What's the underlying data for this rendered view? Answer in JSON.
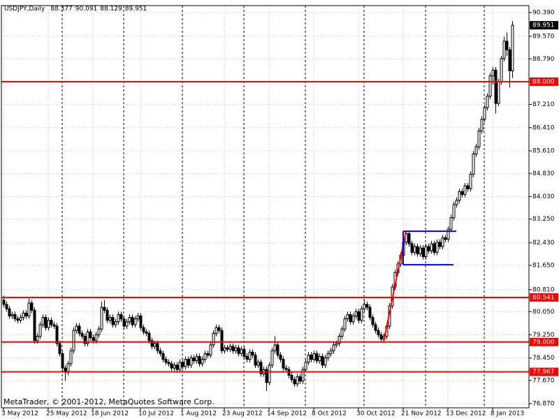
{
  "chart_data": {
    "type": "candlestick",
    "title": "USDJPY,Daily",
    "categories": [
      "3 May 2012",
      null,
      null,
      null,
      null,
      null,
      null,
      null,
      null,
      null,
      null,
      null,
      null,
      null,
      null,
      null,
      "25 May 2012",
      null,
      null,
      null,
      null,
      null,
      null,
      null,
      null,
      null,
      null,
      null,
      null,
      null,
      null,
      null,
      "18 Jun 2012",
      null,
      null,
      null,
      null,
      null,
      null,
      null,
      null,
      null,
      null,
      null,
      null,
      null,
      null,
      null,
      null,
      "10 Jul 2012",
      null,
      null,
      null,
      null,
      null,
      null,
      null,
      null,
      null,
      null,
      null,
      null,
      null,
      null,
      "1 Aug 2012",
      null,
      null,
      null,
      null,
      null,
      null,
      null,
      null,
      null,
      null,
      null,
      null,
      null,
      null,
      "23 Aug 2012",
      null,
      null,
      null,
      null,
      null,
      null,
      null,
      null,
      null,
      null,
      null,
      null,
      null,
      null,
      null,
      "14 Sep 2012",
      null,
      null,
      null,
      null,
      null,
      null,
      null,
      null,
      null,
      null,
      null,
      null,
      null,
      null,
      null,
      "8 Oct 2012",
      null,
      null,
      null,
      null,
      null,
      null,
      null,
      null,
      null,
      null,
      null,
      null,
      null,
      null,
      null,
      "30 Oct 2012",
      null,
      null,
      null,
      null,
      null,
      null,
      null,
      null,
      null,
      null,
      null,
      null,
      null,
      null,
      null,
      "21 Nov 2012",
      null,
      null,
      null,
      null,
      null,
      null,
      null,
      null,
      null,
      null,
      null,
      null,
      null,
      null,
      null,
      "13 Dec 2012",
      null,
      null,
      null,
      null,
      null,
      null,
      null,
      null,
      null,
      null,
      null,
      null,
      null,
      null,
      null,
      "8 Jan 2013",
      null,
      null,
      null,
      null,
      null,
      null,
      null
    ],
    "open": [
      80.45,
      80.3,
      80.15,
      79.9,
      79.95,
      79.8,
      79.75,
      79.85,
      80.0,
      79.9,
      80.35,
      80.1,
      79.05,
      79.2,
      79.6,
      79.85,
      79.5,
      79.75,
      79.6,
      79.55,
      78.95,
      78.6,
      78.1,
      77.95,
      78.25,
      78.7,
      79.4,
      79.55,
      79.3,
      79.2,
      78.95,
      79.35,
      79.15,
      79.05,
      79.25,
      79.45,
      80.2,
      80.1,
      79.75,
      79.85,
      79.6,
      79.7,
      79.95,
      79.8,
      79.55,
      79.7,
      79.85,
      79.6,
      79.8,
      79.9,
      79.5,
      79.35,
      79.3,
      79.05,
      78.85,
      78.95,
      78.7,
      78.6,
      78.4,
      78.3,
      78.25,
      78.1,
      78.2,
      78.05,
      78.3,
      78.15,
      78.4,
      78.2,
      78.45,
      78.35,
      78.5,
      78.25,
      78.4,
      78.6,
      78.55,
      78.9,
      79.3,
      79.5,
      79.4,
      78.7,
      78.8,
      78.75,
      78.85,
      78.7,
      78.8,
      78.6,
      78.75,
      78.5,
      78.4,
      78.65,
      78.55,
      78.2,
      78.3,
      77.9,
      78.05,
      77.6,
      78.2,
      78.7,
      78.9,
      78.55,
      78.4,
      78.1,
      78.05,
      77.85,
      77.7,
      77.55,
      77.8,
      77.65,
      78.05,
      78.3,
      78.55,
      78.4,
      78.6,
      78.35,
      78.5,
      78.2,
      78.45,
      78.6,
      78.7,
      78.9,
      78.95,
      79.2,
      79.45,
      79.8,
      79.95,
      79.7,
      79.9,
      80.05,
      79.75,
      80.15,
      80.3,
      80.2,
      79.85,
      79.6,
      79.4,
      79.25,
      79.1,
      79.2,
      79.55,
      80.25,
      80.9,
      81.4,
      81.7,
      82.0,
      82.45,
      82.75,
      82.4,
      82.1,
      82.3,
      82.05,
      82.25,
      81.95,
      82.3,
      82.15,
      82.4,
      82.1,
      82.45,
      82.3,
      82.6,
      82.55,
      82.9,
      83.3,
      83.75,
      83.9,
      84.2,
      84.1,
      84.4,
      84.3,
      84.8,
      85.5,
      85.75,
      86.3,
      86.7,
      87.1,
      87.5,
      88.2,
      88.4,
      87.25,
      88.0,
      88.8,
      89.4,
      89.1,
      88.377
    ],
    "high": [
      80.6,
      80.4,
      80.25,
      80.05,
      80.05,
      79.9,
      79.95,
      80.1,
      80.1,
      80.5,
      80.45,
      80.2,
      79.3,
      79.7,
      79.95,
      79.95,
      79.85,
      79.85,
      79.7,
      79.65,
      79.05,
      78.7,
      78.2,
      78.35,
      78.8,
      79.5,
      79.65,
      79.65,
      79.4,
      79.3,
      79.45,
      79.45,
      79.25,
      79.35,
      79.55,
      80.4,
      80.45,
      80.2,
      79.95,
      79.95,
      79.8,
      80.05,
      80.05,
      79.9,
      79.8,
      79.95,
      79.95,
      79.9,
      80.0,
      80.0,
      79.6,
      79.45,
      79.4,
      79.15,
      79.05,
      79.05,
      78.8,
      78.7,
      78.5,
      78.4,
      78.35,
      78.3,
      78.3,
      78.4,
      78.4,
      78.5,
      78.5,
      78.55,
      78.55,
      78.6,
      78.6,
      78.5,
      78.7,
      78.7,
      79.0,
      79.4,
      79.6,
      79.6,
      79.5,
      78.9,
      78.9,
      78.95,
      78.95,
      78.9,
      78.9,
      78.85,
      78.85,
      78.6,
      78.75,
      78.75,
      78.65,
      78.4,
      78.4,
      78.15,
      78.15,
      78.3,
      78.8,
      79.2,
      79.0,
      78.65,
      78.5,
      78.2,
      78.15,
      77.95,
      77.8,
      77.9,
      77.9,
      78.15,
      78.4,
      78.65,
      78.65,
      78.7,
      78.7,
      78.6,
      78.6,
      78.55,
      78.7,
      78.8,
      79.0,
      79.05,
      79.3,
      79.55,
      79.9,
      80.05,
      80.05,
      80.0,
      80.15,
      80.15,
      80.25,
      80.45,
      80.4,
      80.3,
      79.95,
      79.7,
      79.5,
      79.35,
      79.3,
      79.65,
      80.35,
      81.0,
      81.5,
      81.8,
      82.1,
      82.55,
      82.85,
      82.85,
      82.5,
      82.4,
      82.4,
      82.35,
      82.35,
      82.4,
      82.4,
      82.5,
      82.5,
      82.55,
      82.55,
      82.7,
      82.7,
      83.0,
      83.4,
      83.85,
      84.0,
      84.3,
      84.3,
      84.5,
      84.5,
      84.9,
      85.6,
      85.85,
      86.4,
      86.8,
      87.2,
      87.6,
      88.3,
      88.5,
      88.5,
      88.1,
      88.9,
      89.55,
      89.7,
      89.2,
      90.091
    ],
    "low": [
      80.2,
      80.05,
      79.8,
      79.8,
      79.7,
      79.65,
      79.65,
      79.75,
      79.8,
      79.8,
      80.0,
      78.95,
      78.95,
      79.1,
      79.5,
      79.4,
      79.4,
      79.5,
      79.45,
      78.85,
      78.5,
      77.95,
      77.65,
      77.85,
      78.15,
      78.6,
      79.3,
      79.2,
      79.1,
      78.85,
      78.85,
      79.05,
      78.95,
      78.95,
      79.15,
      79.35,
      80.0,
      79.65,
      79.65,
      79.5,
      79.5,
      79.6,
      79.7,
      79.45,
      79.45,
      79.6,
      79.5,
      79.5,
      79.7,
      79.4,
      79.25,
      79.2,
      78.95,
      78.75,
      78.75,
      78.6,
      78.5,
      78.3,
      78.2,
      78.15,
      78.0,
      78.0,
      77.95,
      77.95,
      78.05,
      78.05,
      78.1,
      78.1,
      78.25,
      78.25,
      78.15,
      78.15,
      78.3,
      78.45,
      78.45,
      78.8,
      79.2,
      79.3,
      78.6,
      78.6,
      78.65,
      78.65,
      78.6,
      78.6,
      78.5,
      78.5,
      78.4,
      78.3,
      78.3,
      78.45,
      78.1,
      78.1,
      77.8,
      77.8,
      77.3,
      77.5,
      78.1,
      78.6,
      78.45,
      78.3,
      78.0,
      77.95,
      77.75,
      77.6,
      77.45,
      77.45,
      77.55,
      77.55,
      77.95,
      78.2,
      78.3,
      78.3,
      78.25,
      78.25,
      78.1,
      78.1,
      78.35,
      78.5,
      78.6,
      78.8,
      78.85,
      79.1,
      79.35,
      79.7,
      79.6,
      79.6,
      79.8,
      79.65,
      79.65,
      80.05,
      80.1,
      79.75,
      79.5,
      79.3,
      79.15,
      79.0,
      79.0,
      79.1,
      79.45,
      80.15,
      80.8,
      81.3,
      81.6,
      81.9,
      82.35,
      82.3,
      82.0,
      82.0,
      81.95,
      81.95,
      81.85,
      81.85,
      82.05,
      82.05,
      82.0,
      82.0,
      82.2,
      82.2,
      82.45,
      82.45,
      82.8,
      83.2,
      83.65,
      83.8,
      84.0,
      84.0,
      84.2,
      84.2,
      84.7,
      85.4,
      85.65,
      86.2,
      86.6,
      87.0,
      87.4,
      87.9,
      86.9,
      87.15,
      87.9,
      88.7,
      88.9,
      87.8,
      88.129
    ],
    "close": [
      80.3,
      80.15,
      79.9,
      79.95,
      79.8,
      79.75,
      79.85,
      80.0,
      79.9,
      80.35,
      80.1,
      79.05,
      79.2,
      79.6,
      79.85,
      79.5,
      79.75,
      79.6,
      79.55,
      78.95,
      78.6,
      78.1,
      77.95,
      78.25,
      78.7,
      79.4,
      79.55,
      79.3,
      79.2,
      78.95,
      79.35,
      79.15,
      79.05,
      79.25,
      79.45,
      80.2,
      80.1,
      79.75,
      79.85,
      79.6,
      79.7,
      79.95,
      79.8,
      79.55,
      79.7,
      79.85,
      79.6,
      79.8,
      79.9,
      79.5,
      79.35,
      79.3,
      79.05,
      78.85,
      78.95,
      78.7,
      78.6,
      78.4,
      78.3,
      78.25,
      78.1,
      78.2,
      78.05,
      78.3,
      78.15,
      78.4,
      78.2,
      78.45,
      78.35,
      78.5,
      78.25,
      78.4,
      78.6,
      78.55,
      78.9,
      79.3,
      79.5,
      79.4,
      78.7,
      78.8,
      78.75,
      78.85,
      78.7,
      78.8,
      78.6,
      78.75,
      78.5,
      78.4,
      78.65,
      78.55,
      78.2,
      78.3,
      77.9,
      78.05,
      77.6,
      78.2,
      78.7,
      78.9,
      78.55,
      78.4,
      78.1,
      78.05,
      77.85,
      77.7,
      77.55,
      77.8,
      77.65,
      78.05,
      78.3,
      78.55,
      78.4,
      78.6,
      78.35,
      78.5,
      78.2,
      78.45,
      78.6,
      78.7,
      78.9,
      78.95,
      79.2,
      79.45,
      79.8,
      79.95,
      79.7,
      79.9,
      80.05,
      79.75,
      80.15,
      80.3,
      80.2,
      79.85,
      79.6,
      79.4,
      79.25,
      79.1,
      79.2,
      79.55,
      80.25,
      80.9,
      81.4,
      81.7,
      82.0,
      82.45,
      82.75,
      82.4,
      82.1,
      82.3,
      82.05,
      82.25,
      81.95,
      82.3,
      82.15,
      82.4,
      82.1,
      82.45,
      82.3,
      82.6,
      82.55,
      82.9,
      83.3,
      83.75,
      83.9,
      84.2,
      84.1,
      84.4,
      84.3,
      84.8,
      85.5,
      85.75,
      86.3,
      86.7,
      87.1,
      87.5,
      88.2,
      88.4,
      87.25,
      88.0,
      88.8,
      89.4,
      89.1,
      88.377,
      89.951
    ],
    "ylim": [
      76.725,
      90.631
    ],
    "yticks": [
      {
        "value": 90.39,
        "label": "90.390"
      },
      {
        "value": 89.57,
        "label": "89.570"
      },
      {
        "value": 88.79,
        "label": "88.790"
      },
      {
        "value": 87.21,
        "label": "87.210"
      },
      {
        "value": 86.41,
        "label": "86.410"
      },
      {
        "value": 85.61,
        "label": "85.610"
      },
      {
        "value": 84.83,
        "label": "84.830"
      },
      {
        "value": 84.03,
        "label": "84.030"
      },
      {
        "value": 83.25,
        "label": "83.250"
      },
      {
        "value": 82.43,
        "label": "82.430"
      },
      {
        "value": 81.65,
        "label": "81.650"
      },
      {
        "value": 80.81,
        "label": "80.810"
      },
      {
        "value": 80.05,
        "label": "80.050"
      },
      {
        "value": 79.25,
        "label": "79.250"
      },
      {
        "value": 78.45,
        "label": "78.450"
      },
      {
        "value": 77.67,
        "label": "77.670"
      },
      {
        "value": 76.87,
        "label": "76.870"
      }
    ],
    "grid": true,
    "levels": [
      {
        "value": 88,
        "label": "88.000",
        "color": "#ff0000"
      },
      {
        "value": 80.541,
        "label": "80.541",
        "color": "#ff0000"
      },
      {
        "value": 79,
        "label": "79.000",
        "color": "#ff0000"
      },
      {
        "value": 77.967,
        "label": "77.967",
        "color": "#ff0000"
      }
    ],
    "trendlines": [
      {
        "color": "#ff0000",
        "x": [
          136,
          144
        ],
        "y": [
          79.0,
          82.83
        ]
      },
      {
        "color": "#0000ff",
        "x": [
          143,
          162
        ],
        "y": [
          82.83,
          82.83
        ]
      },
      {
        "color": "#0000ff",
        "x": [
          143,
          161
        ],
        "y": [
          81.67,
          81.67
        ]
      },
      {
        "color": "#0000ff",
        "x": [
          143,
          143
        ],
        "y": [
          81.67,
          82.83
        ]
      }
    ]
  },
  "footer": "MetaTrader, © 2001-2012, MetaQuotes Software Corp."
}
